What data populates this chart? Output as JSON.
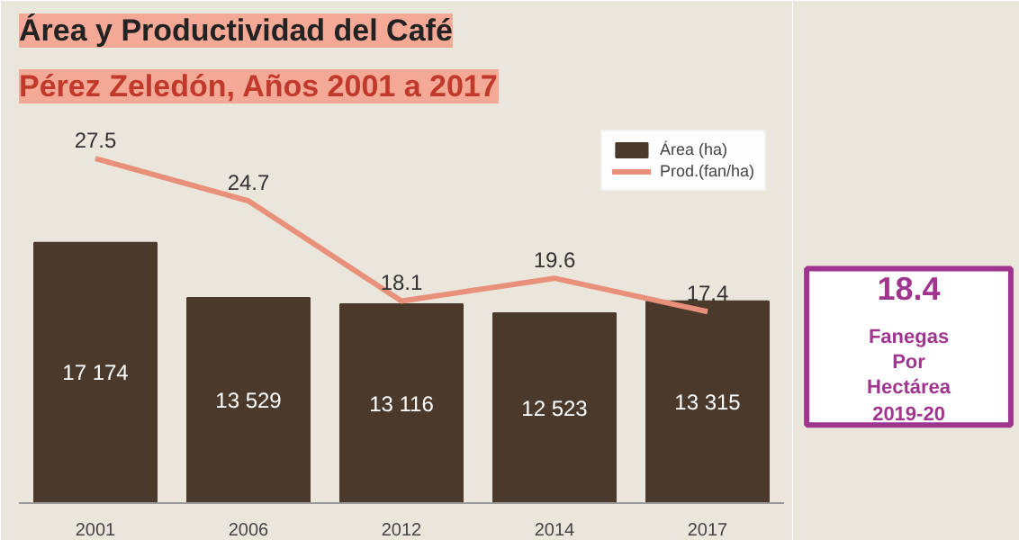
{
  "chart_data": {
    "type": "bar",
    "title": "Área y Productividad del Café",
    "subtitle": "Pérez Zeledón, Años 2001 a 2017",
    "categories": [
      "2001",
      "2006",
      "2012",
      "2014",
      "2017"
    ],
    "series": [
      {
        "name": "Área (ha)",
        "color": "#4b3a2c",
        "values": [
          17174,
          13529,
          13116,
          12523,
          13315
        ],
        "value_labels": [
          "17 174",
          "13 529",
          "13 116",
          "12 523",
          "13 315"
        ]
      },
      {
        "name": "Prod.(fan/ha)",
        "type": "line",
        "axis": "y2",
        "color": "#e8907a",
        "values": [
          27.5,
          24.7,
          18.1,
          19.6,
          17.4
        ],
        "value_labels": [
          "27.5",
          "24.7",
          "18.1",
          "19.6",
          "17.4"
        ]
      }
    ],
    "legend": "top right",
    "annotations": [
      "18.4",
      "Fanegas",
      "Por",
      "Hectárea",
      "2019-20"
    ]
  }
}
